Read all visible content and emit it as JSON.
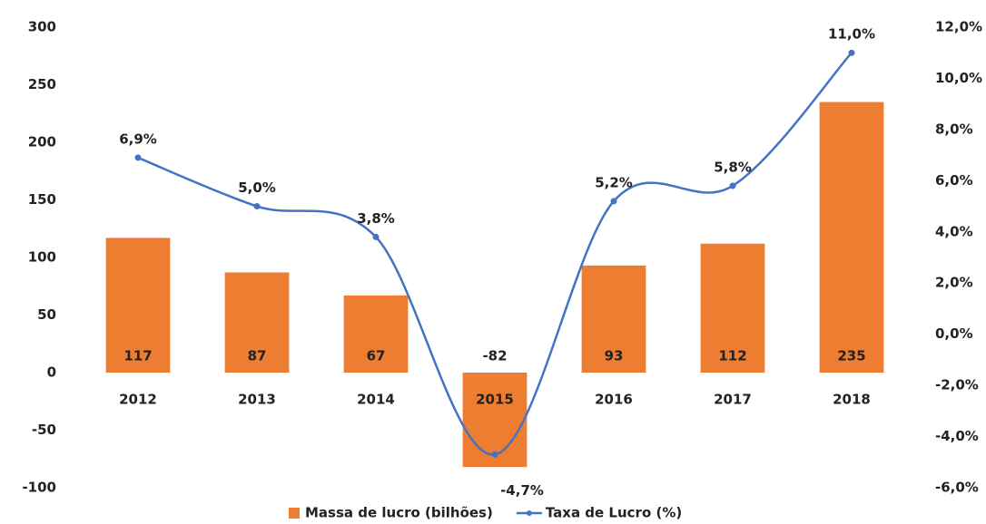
{
  "chart_data": {
    "type": "bar_line",
    "categories": [
      "2012",
      "2013",
      "2014",
      "2015",
      "2016",
      "2017",
      "2018"
    ],
    "series": [
      {
        "name": "Massa de lucro (bilhões)",
        "type": "bar",
        "color": "#ed7d31",
        "values": [
          117,
          87,
          67,
          -82,
          93,
          112,
          235
        ]
      },
      {
        "name": "Taxa de Lucro (%)",
        "type": "line",
        "axis": "y2",
        "color": "#4472c4",
        "values": [
          6.9,
          5.0,
          3.8,
          -4.7,
          5.2,
          5.8,
          11.0
        ],
        "value_labels": [
          "6,9%",
          "5,0%",
          "3,8%",
          "-4,7%",
          "5,2%",
          "5,8%",
          "11,0%"
        ]
      }
    ],
    "ylim": [
      -100,
      300
    ],
    "yticks": [
      -100,
      -50,
      0,
      50,
      100,
      150,
      200,
      250,
      300
    ],
    "y2lim": [
      -6,
      12
    ],
    "y2ticks": [
      {
        "value": -6,
        "label": "-6,0%"
      },
      {
        "value": -4,
        "label": "-4,0%"
      },
      {
        "value": -2,
        "label": "-2,0%"
      },
      {
        "value": 0,
        "label": "0,0%"
      },
      {
        "value": 2,
        "label": "2,0%"
      },
      {
        "value": 4,
        "label": "4,0%"
      },
      {
        "value": 6,
        "label": "6,0%"
      },
      {
        "value": 8,
        "label": "8,0%"
      },
      {
        "value": 10,
        "label": "10,0%"
      },
      {
        "value": 12,
        "label": "12,0%"
      }
    ],
    "legend": "bottom",
    "grid": false
  }
}
